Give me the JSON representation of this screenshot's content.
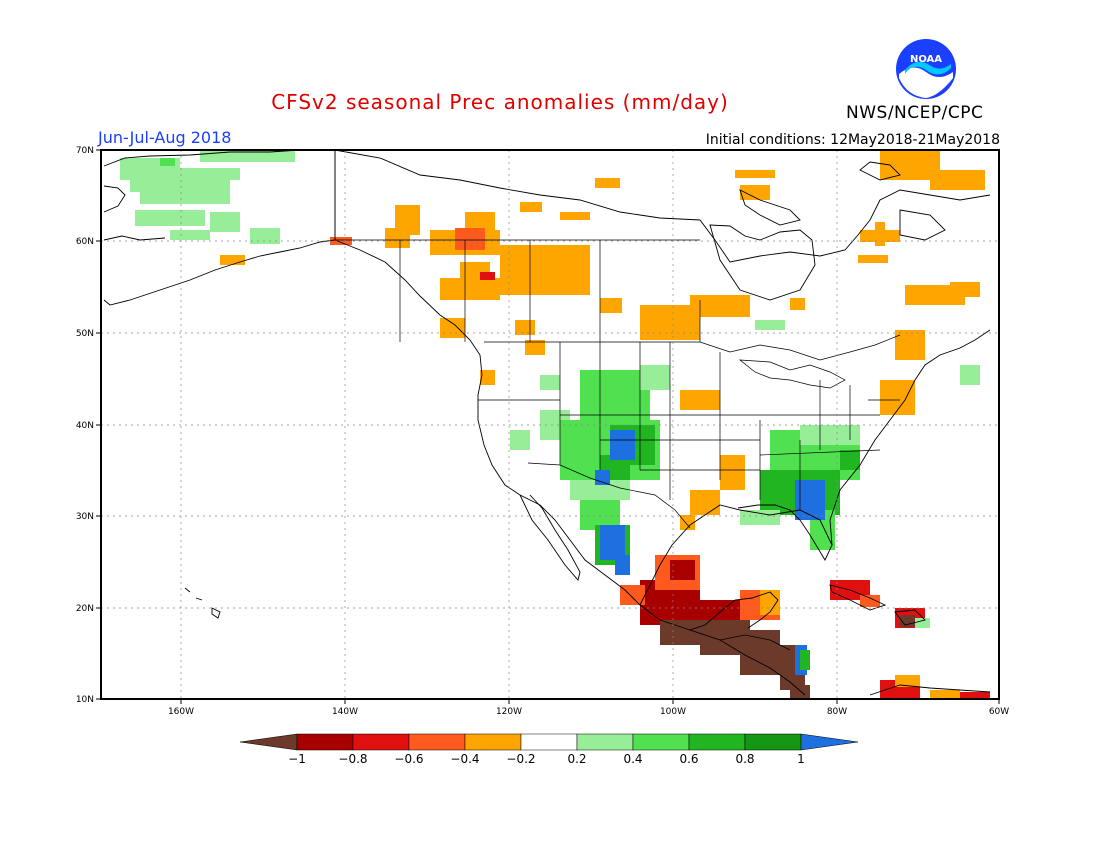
{
  "title": "CFSv2 seasonal Prec anomalies (mm/day)",
  "period": "Jun-Jul-Aug 2018",
  "initial_conditions": "Initial conditions: 12May2018-21May2018",
  "agency": "NWS/NCEP/CPC",
  "logo_text": "NOAA",
  "lat_labels": [
    "70N",
    "60N",
    "50N",
    "40N",
    "30N",
    "20N",
    "10N"
  ],
  "lon_labels": [
    "160W",
    "140W",
    "120W",
    "100W",
    "80W",
    "60W"
  ],
  "colorbar": {
    "labels": [
      "-1",
      "-0.8",
      "-0.6",
      "-0.4",
      "-0.2",
      "0.2",
      "0.4",
      "0.6",
      "0.8",
      "1"
    ],
    "colors": {
      "below_-1": "#6b3a2a",
      "-1_-0.8": "#a80000",
      "-0.8_-0.6": "#e01010",
      "-0.6_-0.4": "#ff5a1e",
      "-0.4_-0.2": "#ffa500",
      "-0.2_0.2": "#ffffff",
      "0.2_0.4": "#98ee98",
      "0.4_0.6": "#50e050",
      "0.6_0.8": "#22b522",
      "0.8_1": "#149614",
      "above_1": "#1e70e0"
    }
  },
  "anomaly_regions": {
    "alaska": "0.2_0.4",
    "pacific_northwest_canada": "-0.4_-0.2",
    "southwest_us_monsoon": "0.4_0.6",
    "new_mexico_core": "above_1",
    "southeast_us": "0.6_0.8",
    "florida_core": "above_1",
    "mexico_pacific_coast": "-1_-0.8",
    "central_america": "below_-1",
    "northeast_us": "-0.4_-0.2"
  }
}
